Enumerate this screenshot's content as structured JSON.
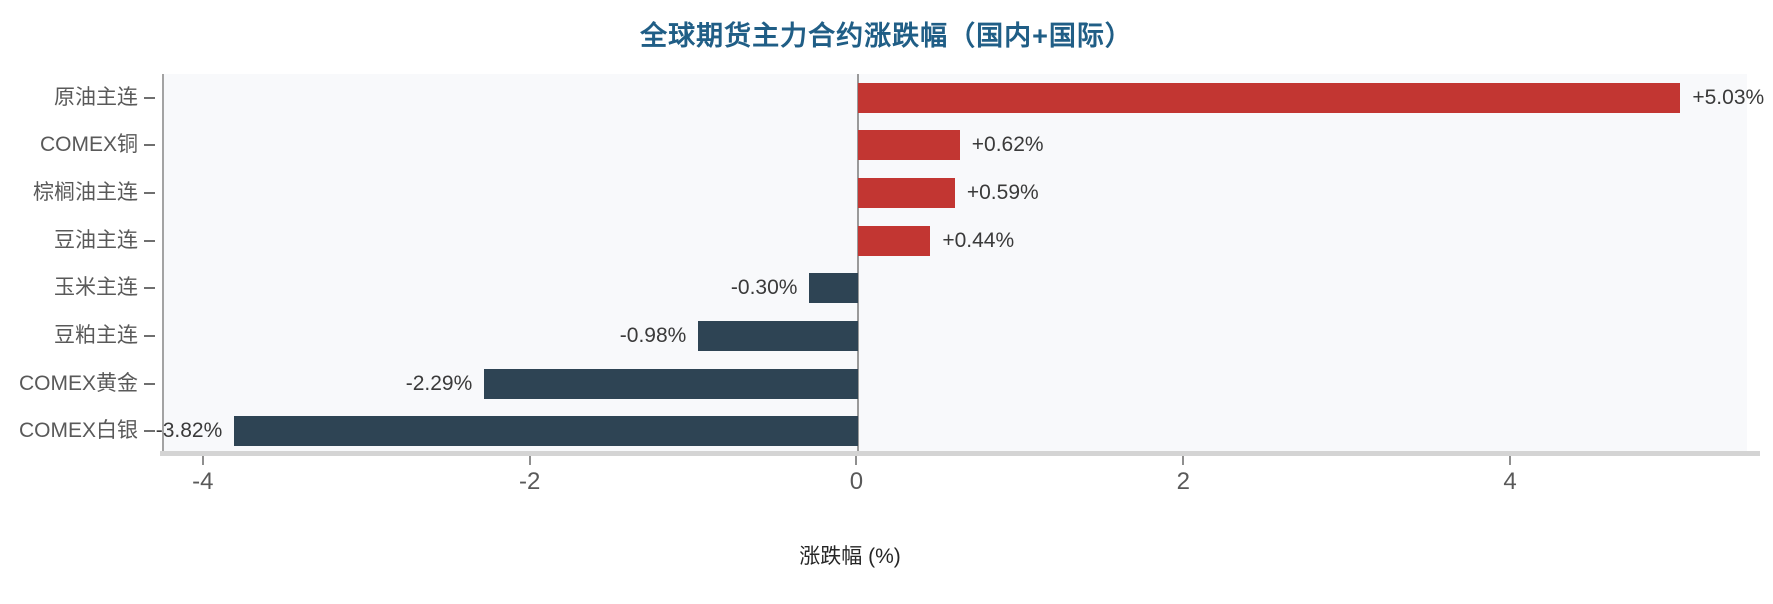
{
  "page": {
    "background": "#ffffff"
  },
  "chart_data": {
    "type": "bar",
    "orientation": "horizontal",
    "title": "全球期货主力合约涨跌幅（国内+国际）",
    "xlabel": "涨跌幅 (%)",
    "categories": [
      "原油主连",
      "COMEX铜",
      "棕榈油主连",
      "豆油主连",
      "玉米主连",
      "豆粕主连",
      "COMEX黄金",
      "COMEX白银"
    ],
    "values": [
      5.03,
      0.62,
      0.59,
      0.44,
      -0.3,
      -0.98,
      -2.29,
      -3.82
    ],
    "value_labels": [
      "+5.03%",
      "+0.62%",
      "+0.59%",
      "+0.44%",
      "-0.30%",
      "-0.98%",
      "-2.29%",
      "-3.82%"
    ],
    "x_ticks": [
      -4,
      -2,
      0,
      2,
      4
    ],
    "x_tick_labels": [
      "-4",
      "-2",
      "0",
      "2",
      "4"
    ],
    "xlim": [
      -4.25,
      5.45
    ],
    "grid": false,
    "legend": "none",
    "colors": {
      "positive_bar": "#c23632",
      "negative_bar": "#2e4454",
      "title": "#205e86",
      "plot_background": "#f8f9fb",
      "axis_tick_label": "#595959",
      "value_label": "#3a3a3a"
    }
  }
}
